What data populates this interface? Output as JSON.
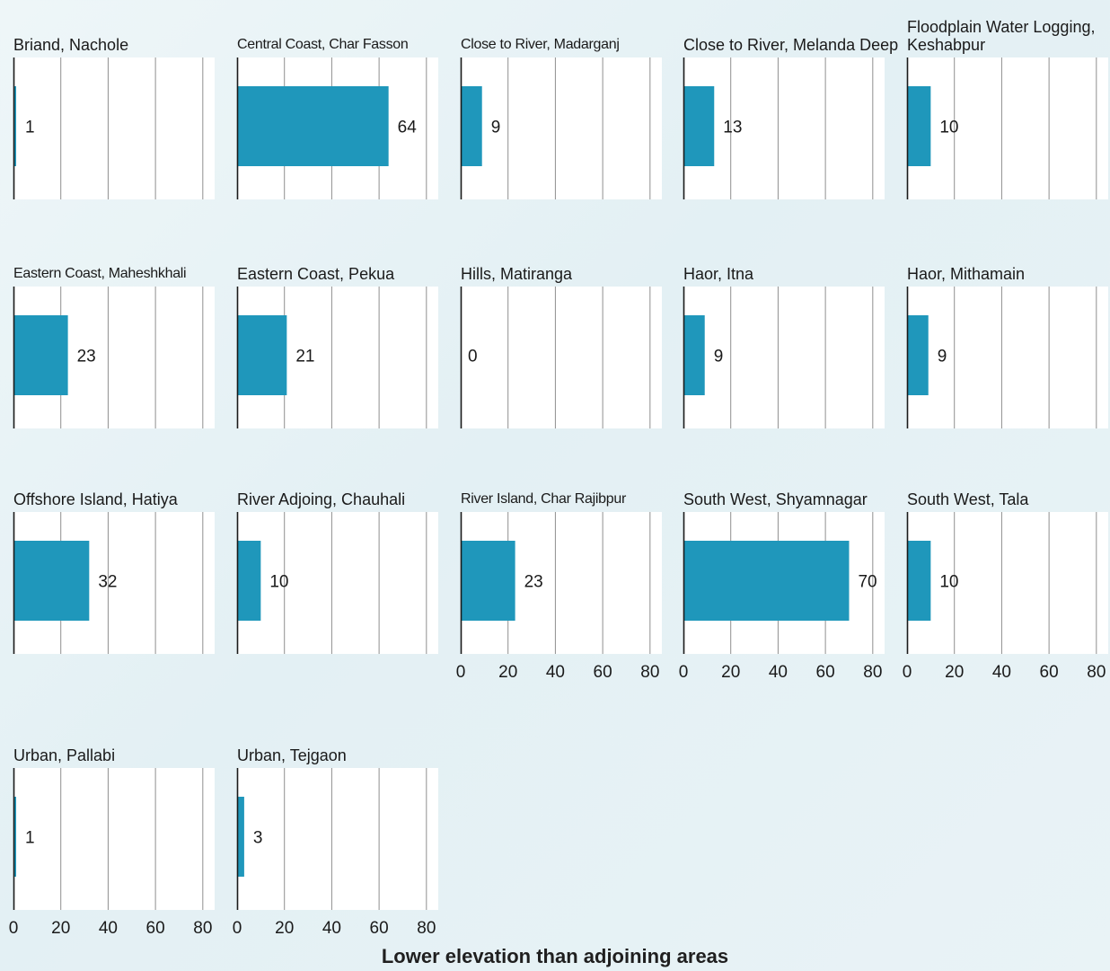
{
  "chart_data": {
    "type": "bar",
    "orientation": "horizontal",
    "facets": true,
    "xlabel": "Lower elevation than adjoining areas",
    "xlim": [
      0,
      85
    ],
    "xticks": [
      0,
      20,
      40,
      60,
      80
    ],
    "grid": true,
    "bar_color": "#1f97bb",
    "panels": [
      {
        "title": "Briand, Nachole",
        "value": 1,
        "show_ticks": false
      },
      {
        "title": "Central Coast, Char Fasson",
        "value": 64,
        "show_ticks": false
      },
      {
        "title": "Close to River, Madarganj",
        "value": 9,
        "show_ticks": false
      },
      {
        "title": "Close to River, Melanda Deep",
        "value": 13,
        "show_ticks": false
      },
      {
        "title": "Floodplain Water Logging, Keshabpur",
        "value": 10,
        "show_ticks": false
      },
      {
        "title": "Eastern Coast, Maheshkhali",
        "value": 23,
        "show_ticks": false
      },
      {
        "title": "Eastern Coast, Pekua",
        "value": 21,
        "show_ticks": false
      },
      {
        "title": "Hills, Matiranga",
        "value": 0,
        "show_ticks": false
      },
      {
        "title": "Haor, Itna",
        "value": 9,
        "show_ticks": false
      },
      {
        "title": "Haor, Mithamain",
        "value": 9,
        "show_ticks": false
      },
      {
        "title": "Offshore Island, Hatiya",
        "value": 32,
        "show_ticks": false
      },
      {
        "title": "River Adjoing, Chauhali",
        "value": 10,
        "show_ticks": false
      },
      {
        "title": "River Island, Char Rajibpur",
        "value": 23,
        "show_ticks": true
      },
      {
        "title": "South West, Shyamnagar",
        "value": 70,
        "show_ticks": true
      },
      {
        "title": "South West, Tala",
        "value": 10,
        "show_ticks": true
      },
      {
        "title": "Urban, Pallabi",
        "value": 1,
        "show_ticks": true
      },
      {
        "title": "Urban, Tejgaon",
        "value": 3,
        "show_ticks": true
      }
    ]
  }
}
